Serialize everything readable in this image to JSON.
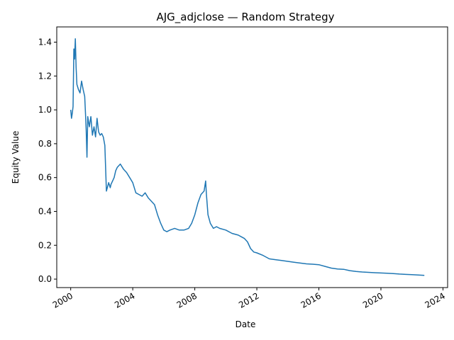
{
  "chart_data": {
    "type": "line",
    "title": "AJG_adjclose — Random Strategy",
    "xlabel": "Date",
    "ylabel": "Equity Value",
    "xlim": [
      1999.1,
      2024.3
    ],
    "ylim": [
      -0.05,
      1.49
    ],
    "x_ticks": [
      2000,
      2004,
      2008,
      2012,
      2016,
      2020,
      2024
    ],
    "y_ticks": [
      0.0,
      0.2,
      0.4,
      0.6,
      0.8,
      1.0,
      1.2,
      1.4
    ],
    "grid": false,
    "legend": "none",
    "series": [
      {
        "color": "#1f77b4",
        "x": [
          2000.0,
          2000.05,
          2000.1,
          2000.15,
          2000.2,
          2000.25,
          2000.3,
          2000.35,
          2000.4,
          2000.5,
          2000.6,
          2000.7,
          2000.8,
          2000.9,
          2000.95,
          2001.0,
          2001.05,
          2001.1,
          2001.2,
          2001.3,
          2001.4,
          2001.5,
          2001.6,
          2001.7,
          2001.8,
          2001.9,
          2002.0,
          2002.1,
          2002.2,
          2002.3,
          2002.45,
          2002.55,
          2002.6,
          2002.7,
          2002.8,
          2002.9,
          2003.0,
          2003.2,
          2003.4,
          2003.6,
          2003.8,
          2004.0,
          2004.2,
          2004.4,
          2004.6,
          2004.8,
          2005.0,
          2005.2,
          2005.4,
          2005.6,
          2005.8,
          2006.0,
          2006.2,
          2006.4,
          2006.7,
          2007.0,
          2007.3,
          2007.6,
          2007.8,
          2008.0,
          2008.2,
          2008.4,
          2008.6,
          2008.7,
          2008.75,
          2008.85,
          2009.0,
          2009.2,
          2009.4,
          2009.6,
          2010.0,
          2010.4,
          2010.8,
          2011.0,
          2011.2,
          2011.4,
          2011.6,
          2011.8,
          2012.0,
          2012.4,
          2012.8,
          2013.2,
          2013.6,
          2014.0,
          2014.4,
          2014.8,
          2015.2,
          2015.6,
          2016.0,
          2016.4,
          2016.8,
          2017.2,
          2017.6,
          2018.0,
          2018.4,
          2018.8,
          2019.2,
          2019.6,
          2020.0,
          2020.4,
          2020.8,
          2021.2,
          2021.6,
          2022.0,
          2022.4,
          2022.8
        ],
        "y": [
          1.0,
          0.95,
          0.98,
          1.02,
          1.36,
          1.3,
          1.42,
          1.25,
          1.15,
          1.12,
          1.1,
          1.17,
          1.12,
          1.08,
          0.98,
          0.88,
          0.72,
          0.96,
          0.9,
          0.96,
          0.85,
          0.9,
          0.84,
          0.95,
          0.87,
          0.85,
          0.86,
          0.84,
          0.79,
          0.52,
          0.57,
          0.54,
          0.56,
          0.58,
          0.6,
          0.64,
          0.66,
          0.68,
          0.65,
          0.63,
          0.6,
          0.57,
          0.51,
          0.5,
          0.49,
          0.51,
          0.48,
          0.46,
          0.44,
          0.38,
          0.33,
          0.29,
          0.28,
          0.29,
          0.3,
          0.29,
          0.29,
          0.3,
          0.33,
          0.38,
          0.45,
          0.5,
          0.52,
          0.58,
          0.5,
          0.38,
          0.33,
          0.3,
          0.31,
          0.3,
          0.29,
          0.27,
          0.26,
          0.25,
          0.24,
          0.22,
          0.18,
          0.16,
          0.155,
          0.14,
          0.12,
          0.115,
          0.11,
          0.105,
          0.1,
          0.095,
          0.09,
          0.088,
          0.085,
          0.075,
          0.065,
          0.06,
          0.058,
          0.05,
          0.045,
          0.042,
          0.04,
          0.038,
          0.036,
          0.035,
          0.033,
          0.03,
          0.028,
          0.026,
          0.024,
          0.022
        ]
      }
    ]
  }
}
